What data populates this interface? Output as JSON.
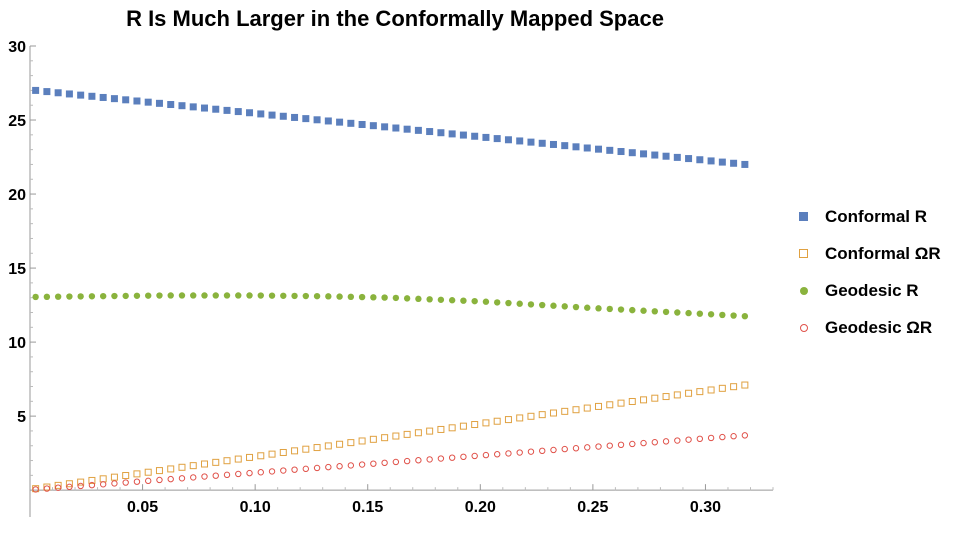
{
  "chart_data": {
    "type": "scatter",
    "title": "R Is Much Larger in the Conformally Mapped Space",
    "xlabel": "",
    "ylabel": "",
    "xlim": [
      0,
      0.33
    ],
    "ylim": [
      -0.8,
      30
    ],
    "x_ticks": [
      "0.05",
      "0.10",
      "0.15",
      "0.20",
      "0.25",
      "0.30"
    ],
    "y_ticks": [
      "5",
      "10",
      "15",
      "20",
      "25",
      "30"
    ],
    "x_start": 0.0025,
    "x_step": 0.005,
    "n_points": 64,
    "legend_position": "right",
    "series": [
      {
        "name": "Conformal R",
        "marker": "filled-square",
        "color": "#5b7fbd",
        "description": "linear decrease",
        "y_at_x": [
          [
            0.0025,
            27.0
          ],
          [
            0.3175,
            22.0
          ]
        ]
      },
      {
        "name": "Conformal ΩR",
        "marker": "open-square",
        "color": "#e0a141",
        "description": "linear increase",
        "y_at_x": [
          [
            0.0025,
            0.1
          ],
          [
            0.3175,
            7.1
          ]
        ]
      },
      {
        "name": "Geodesic R",
        "marker": "filled-circle",
        "color": "#8ab33d",
        "description": "slight rise then decline",
        "y_at_x": [
          [
            0.0025,
            13.05
          ],
          [
            0.03,
            13.1
          ],
          [
            0.06,
            13.15
          ],
          [
            0.1,
            13.15
          ],
          [
            0.13,
            13.1
          ],
          [
            0.16,
            13.0
          ],
          [
            0.2,
            12.75
          ],
          [
            0.25,
            12.3
          ],
          [
            0.3,
            11.9
          ],
          [
            0.3175,
            11.75
          ]
        ]
      },
      {
        "name": "Geodesic ΩR",
        "marker": "open-circle",
        "color": "#e0524a",
        "description": "linear increase",
        "y_at_x": [
          [
            0.0025,
            0.05
          ],
          [
            0.3175,
            3.7
          ]
        ]
      }
    ]
  }
}
